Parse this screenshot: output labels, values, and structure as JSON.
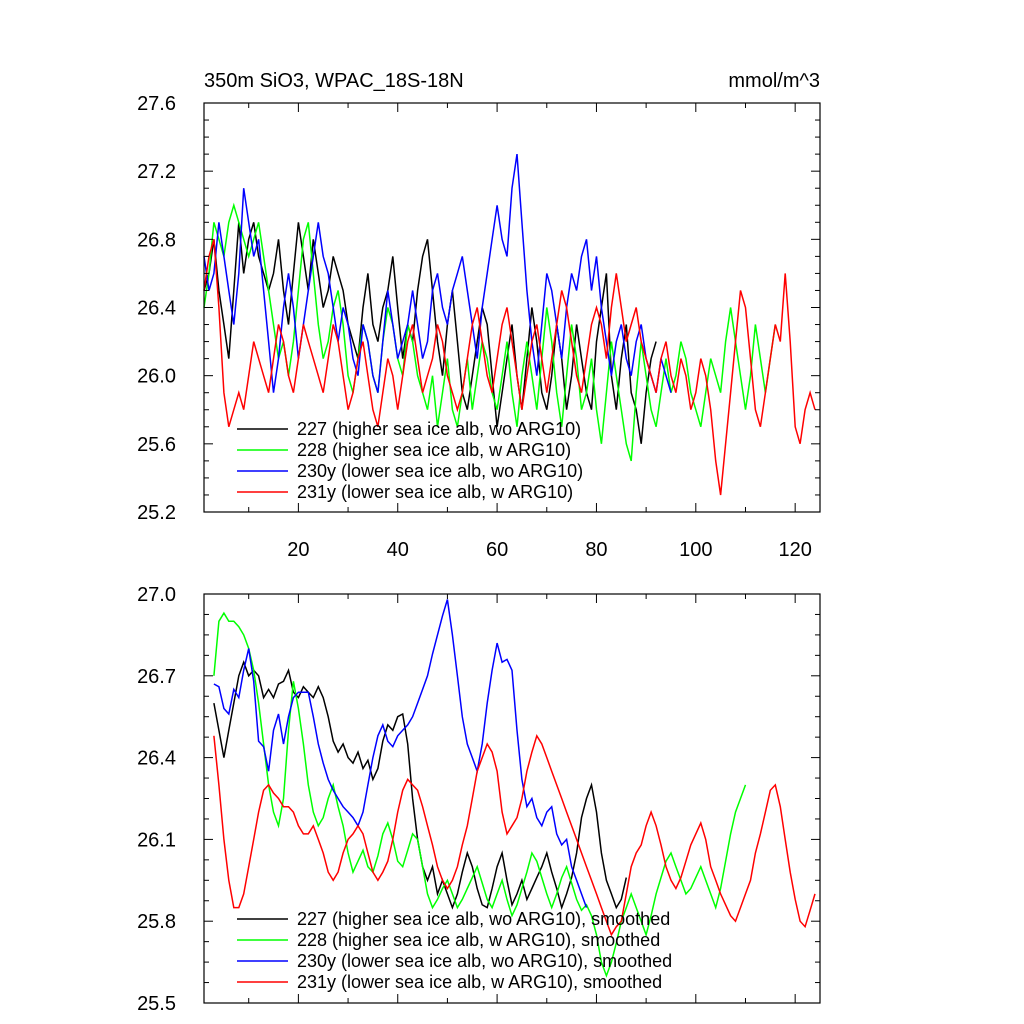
{
  "figure": {
    "background": "#ffffff"
  },
  "chart_data": [
    {
      "type": "line",
      "title_left": "350m SiO3, WPAC_18S-18N",
      "title_right": "mmol/m^3",
      "xlim": [
        1,
        125
      ],
      "ylim": [
        25.2,
        27.6
      ],
      "x_ticks": [
        20,
        40,
        60,
        80,
        100,
        120
      ],
      "y_ticks": [
        25.2,
        25.6,
        26.0,
        26.4,
        26.8,
        27.2,
        27.6
      ],
      "y_tick_labels": [
        "25.2",
        "25.6",
        "26.0",
        "26.4",
        "26.8",
        "27.2",
        "27.6"
      ],
      "legend_position": "bottom-left",
      "series": [
        {
          "name": "227 (higher sea ice alb, wo ARG10)",
          "color": "#000000",
          "x_start": 1,
          "values": [
            26.5,
            26.6,
            26.8,
            26.5,
            26.3,
            26.1,
            26.5,
            26.9,
            26.6,
            26.8,
            26.9,
            26.7,
            26.6,
            26.5,
            26.6,
            26.8,
            26.5,
            26.3,
            26.6,
            26.9,
            26.7,
            26.5,
            26.8,
            26.6,
            26.4,
            26.5,
            26.7,
            26.6,
            26.5,
            26.3,
            26.2,
            26.1,
            26.4,
            26.6,
            26.3,
            26.2,
            26.4,
            26.5,
            26.7,
            26.4,
            26.1,
            26.3,
            26.2,
            26.5,
            26.7,
            26.8,
            26.5,
            26.2,
            26.0,
            26.3,
            26.5,
            26.2,
            25.9,
            25.8,
            26.0,
            26.2,
            26.4,
            26.3,
            26.0,
            25.7,
            25.9,
            26.1,
            26.3,
            26.0,
            25.8,
            26.1,
            26.4,
            26.2,
            25.9,
            25.8,
            26.0,
            26.3,
            26.1,
            25.8,
            26.0,
            26.3,
            26.1,
            25.9,
            25.8,
            26.2,
            26.4,
            26.6,
            26.0,
            25.8,
            26.1,
            26.3,
            25.9,
            25.8,
            25.6,
            25.9,
            26.1,
            26.2
          ]
        },
        {
          "name": "228 (higher sea ice alb, w ARG10)",
          "color": "#00ff00",
          "x_start": 1,
          "values": [
            26.4,
            26.6,
            26.9,
            26.8,
            26.7,
            26.9,
            27.0,
            26.9,
            26.8,
            26.7,
            26.8,
            26.9,
            26.7,
            26.5,
            26.3,
            26.1,
            26.2,
            26.0,
            26.2,
            26.5,
            26.8,
            26.9,
            26.6,
            26.3,
            26.1,
            26.2,
            26.4,
            26.5,
            26.3,
            26.0,
            25.9,
            26.1,
            26.3,
            26.2,
            26.0,
            25.9,
            26.2,
            26.4,
            26.3,
            26.1,
            26.0,
            26.3,
            26.2,
            26.0,
            25.9,
            25.8,
            26.0,
            25.7,
            25.9,
            26.1,
            25.8,
            25.7,
            25.9,
            26.1,
            25.8,
            26.0,
            26.2,
            26.1,
            25.9,
            25.8,
            26.0,
            26.2,
            25.9,
            25.7,
            26.0,
            26.2,
            26.0,
            25.8,
            26.1,
            26.4,
            26.2,
            25.9,
            25.7,
            26.0,
            26.3,
            26.1,
            25.8,
            25.9,
            26.1,
            25.8,
            25.6,
            25.9,
            26.2,
            26.0,
            25.8,
            25.6,
            25.5,
            25.9,
            26.2,
            26.0,
            25.8,
            25.7,
            25.9,
            26.1,
            25.9,
            26.0,
            26.2,
            26.1,
            25.9,
            25.8,
            25.7,
            25.9,
            26.1,
            26.0,
            25.9,
            26.2,
            26.4,
            26.2,
            26.0,
            25.8,
            26.0,
            26.3,
            26.1,
            25.9,
            26.1,
            26.3
          ]
        },
        {
          "name": "230y (lower sea ice alb, wo ARG10)",
          "color": "#0000ff",
          "x_start": 1,
          "values": [
            26.7,
            26.5,
            26.6,
            26.9,
            26.7,
            26.5,
            26.3,
            26.6,
            27.1,
            26.9,
            26.7,
            26.8,
            26.5,
            26.2,
            25.9,
            26.1,
            26.4,
            26.6,
            26.4,
            26.1,
            26.3,
            26.5,
            26.7,
            26.9,
            26.7,
            26.6,
            26.4,
            26.2,
            26.4,
            26.3,
            26.1,
            26.0,
            26.3,
            26.2,
            26.0,
            25.9,
            26.2,
            26.5,
            26.3,
            26.1,
            26.2,
            26.3,
            26.5,
            26.3,
            26.1,
            26.2,
            26.5,
            26.6,
            26.4,
            26.3,
            26.5,
            26.6,
            26.7,
            26.5,
            26.3,
            26.1,
            26.4,
            26.6,
            26.8,
            27.0,
            26.8,
            26.7,
            27.1,
            27.3,
            26.9,
            26.5,
            26.2,
            26.0,
            26.3,
            26.6,
            26.5,
            26.3,
            26.1,
            26.4,
            26.6,
            26.5,
            26.7,
            26.8,
            26.5,
            26.7,
            26.4,
            26.2,
            26.0,
            26.2,
            26.3,
            26.1,
            26.0,
            26.2,
            26.3,
            26.1,
            26.0,
            25.9,
            26.1,
            26.0,
            25.9
          ]
        },
        {
          "name": "231y (lower sea ice alb, w ARG10)",
          "color": "#ff0000",
          "x_start": 1,
          "values": [
            26.5,
            26.7,
            26.8,
            26.4,
            25.9,
            25.7,
            25.8,
            25.9,
            25.8,
            26.0,
            26.2,
            26.1,
            26.0,
            25.9,
            26.1,
            26.3,
            26.2,
            26.0,
            25.9,
            26.1,
            26.3,
            26.2,
            26.1,
            26.0,
            25.9,
            26.1,
            26.3,
            26.2,
            26.0,
            25.8,
            25.9,
            26.1,
            26.2,
            26.0,
            25.8,
            25.7,
            25.9,
            26.1,
            26.0,
            25.8,
            26.0,
            26.2,
            26.3,
            26.1,
            25.9,
            26.0,
            26.1,
            26.3,
            26.2,
            26.0,
            25.9,
            25.8,
            25.9,
            26.1,
            26.3,
            26.4,
            26.2,
            26.0,
            25.9,
            26.1,
            26.3,
            26.4,
            26.2,
            26.0,
            25.8,
            26.0,
            26.2,
            26.3,
            26.1,
            25.9,
            26.1,
            26.3,
            26.5,
            26.4,
            26.2,
            26.0,
            25.9,
            26.1,
            26.3,
            26.4,
            26.3,
            26.1,
            26.4,
            26.6,
            26.4,
            26.2,
            26.3,
            26.4,
            26.2,
            26.1,
            26.0,
            25.9,
            26.1,
            26.2,
            26.0,
            25.9,
            26.1,
            26.0,
            25.8,
            25.9,
            26.1,
            26.0,
            25.8,
            25.5,
            25.3,
            25.6,
            25.9,
            26.2,
            26.5,
            26.4,
            26.1,
            25.8,
            25.7,
            25.9,
            26.1,
            26.3,
            26.2,
            26.6,
            26.2,
            25.7,
            25.6,
            25.8,
            25.9,
            25.8
          ]
        }
      ]
    },
    {
      "type": "line",
      "xlim": [
        1,
        125
      ],
      "ylim": [
        25.5,
        27.0
      ],
      "y_ticks": [
        25.5,
        25.8,
        26.1,
        26.4,
        26.7,
        27.0
      ],
      "y_tick_labels": [
        "25.5",
        "25.8",
        "26.1",
        "26.4",
        "26.7",
        "27.0"
      ],
      "legend_position": "bottom-left",
      "series": [
        {
          "name": "227 (higher sea ice alb, wo ARG10), smoothed",
          "color": "#000000",
          "x_start": 3,
          "values": [
            26.6,
            26.5,
            26.4,
            26.5,
            26.6,
            26.7,
            26.75,
            26.7,
            26.72,
            26.7,
            26.62,
            26.65,
            26.62,
            26.67,
            26.68,
            26.72,
            26.64,
            26.62,
            26.66,
            26.64,
            26.62,
            26.66,
            26.62,
            26.55,
            26.46,
            26.42,
            26.45,
            26.4,
            26.38,
            26.42,
            26.36,
            26.39,
            26.32,
            26.36,
            26.46,
            26.52,
            26.5,
            26.55,
            26.56,
            26.45,
            26.25,
            26.1,
            26.0,
            25.95,
            26.0,
            25.9,
            25.95,
            25.9,
            25.85,
            25.9,
            25.98,
            26.05,
            26.0,
            25.92,
            25.86,
            25.85,
            25.92,
            26.0,
            26.05,
            25.95,
            25.86,
            25.9,
            25.95,
            25.88,
            25.92,
            25.96,
            26.0,
            26.05,
            25.98,
            25.92,
            25.85,
            25.9,
            25.96,
            26.05,
            26.18,
            26.25,
            26.3,
            26.2,
            26.05,
            25.95,
            25.9,
            25.85,
            25.88,
            25.96
          ]
        },
        {
          "name": "228 (higher sea ice alb, w ARG10), smoothed",
          "color": "#00ff00",
          "x_start": 3,
          "values": [
            26.7,
            26.9,
            26.93,
            26.9,
            26.9,
            26.88,
            26.85,
            26.8,
            26.72,
            26.6,
            26.45,
            26.3,
            26.2,
            26.15,
            26.25,
            26.5,
            26.68,
            26.58,
            26.45,
            26.3,
            26.2,
            26.15,
            26.18,
            26.25,
            26.3,
            26.22,
            26.15,
            26.05,
            25.98,
            26.02,
            26.06,
            26.0,
            25.98,
            26.04,
            26.12,
            26.16,
            26.1,
            26.02,
            26.0,
            26.06,
            26.12,
            26.1,
            26.0,
            25.9,
            25.85,
            25.88,
            25.92,
            25.95,
            25.9,
            25.85,
            25.88,
            25.92,
            25.96,
            26.0,
            25.94,
            25.88,
            25.85,
            25.9,
            25.95,
            25.88,
            25.82,
            25.86,
            25.92,
            25.98,
            26.05,
            26.02,
            25.96,
            25.9,
            25.85,
            25.9,
            25.96,
            26.0,
            25.94,
            25.88,
            25.84,
            25.86,
            25.82,
            25.75,
            25.65,
            25.6,
            25.65,
            25.72,
            25.8,
            25.85,
            25.9,
            25.85,
            25.8,
            25.75,
            25.82,
            25.9,
            25.96,
            26.02,
            26.05,
            26.0,
            25.95,
            25.9,
            25.92,
            25.96,
            26.0,
            25.95,
            25.9,
            25.85,
            25.92,
            26.02,
            26.12,
            26.2,
            26.25,
            26.3
          ]
        },
        {
          "name": "230y (lower sea ice alb, wo ARG10), smoothed",
          "color": "#0000ff",
          "x_start": 3,
          "values": [
            26.67,
            26.66,
            26.58,
            26.56,
            26.65,
            26.62,
            26.72,
            26.8,
            26.68,
            26.46,
            26.44,
            26.35,
            26.5,
            26.56,
            26.45,
            26.55,
            26.62,
            26.64,
            26.64,
            26.64,
            26.55,
            26.45,
            26.38,
            26.32,
            26.28,
            26.25,
            26.22,
            26.2,
            26.18,
            26.15,
            26.2,
            26.3,
            26.4,
            26.48,
            26.52,
            26.46,
            26.44,
            26.48,
            26.5,
            26.52,
            26.55,
            26.6,
            26.65,
            26.7,
            26.78,
            26.85,
            26.92,
            26.98,
            26.85,
            26.7,
            26.55,
            26.45,
            26.4,
            26.35,
            26.45,
            26.6,
            26.72,
            26.82,
            26.75,
            26.76,
            26.72,
            26.5,
            26.32,
            26.22,
            26.25,
            26.18,
            26.15,
            26.2,
            26.22,
            26.12,
            26.08,
            26.1,
            26.0,
            25.95,
            25.9,
            25.85
          ]
        },
        {
          "name": "231y (lower sea ice alb, w ARG10), smoothed",
          "color": "#ff0000",
          "x_start": 3,
          "values": [
            26.48,
            26.3,
            26.1,
            25.95,
            25.85,
            25.85,
            25.9,
            26.0,
            26.1,
            26.2,
            26.28,
            26.3,
            26.27,
            26.25,
            26.22,
            26.22,
            26.2,
            26.15,
            26.12,
            26.12,
            26.15,
            26.1,
            26.05,
            25.98,
            25.95,
            25.98,
            26.05,
            26.1,
            26.12,
            26.15,
            26.12,
            26.05,
            25.98,
            25.95,
            25.98,
            26.02,
            26.1,
            26.2,
            26.28,
            26.32,
            26.3,
            26.28,
            26.22,
            26.15,
            26.08,
            26.0,
            25.95,
            25.92,
            25.95,
            26.0,
            26.08,
            26.15,
            26.25,
            26.35,
            26.4,
            26.45,
            26.42,
            26.35,
            26.2,
            26.12,
            26.15,
            26.18,
            26.25,
            26.35,
            26.42,
            26.48,
            26.45,
            26.4,
            26.35,
            26.3,
            26.25,
            26.2,
            26.15,
            26.1,
            26.05,
            26.0,
            25.95,
            25.9,
            25.85,
            25.8,
            25.75,
            25.78,
            25.8,
            25.9,
            26.0,
            26.05,
            26.08,
            26.15,
            26.2,
            26.15,
            26.08,
            26.0,
            25.95,
            25.92,
            25.96,
            26.02,
            26.08,
            26.12,
            26.16,
            26.1,
            26.0,
            25.95,
            25.9,
            25.86,
            25.82,
            25.8,
            25.85,
            25.9,
            25.95,
            26.05,
            26.12,
            26.2,
            26.28,
            26.3,
            26.22,
            26.1,
            25.98,
            25.88,
            25.8,
            25.78,
            25.84,
            25.9
          ]
        }
      ]
    }
  ]
}
